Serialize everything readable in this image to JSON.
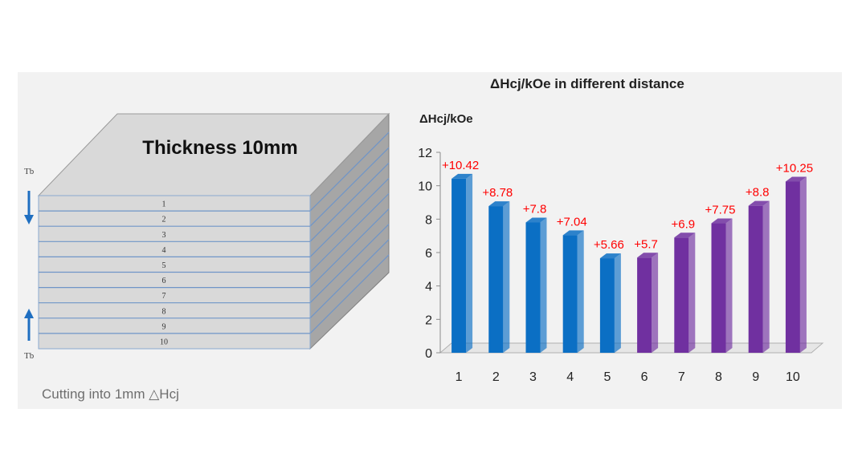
{
  "left_panel": {
    "block_label": "Thickness 10mm",
    "top_marker": "Tb",
    "bottom_marker": "Tb",
    "layers": [
      "1",
      "2",
      "3",
      "4",
      "5",
      "6",
      "7",
      "8",
      "9",
      "10"
    ],
    "caption": "Cutting into 1mm △Hcj",
    "arrow_down_icon": "arrow-down-icon",
    "arrow_up_icon": "arrow-up-icon"
  },
  "chart_data": {
    "type": "bar",
    "title": "ΔHcj/kOe in different distance",
    "ylabel": "ΔHcj/kOe",
    "xlabel": "",
    "categories": [
      "1",
      "2",
      "3",
      "4",
      "5",
      "6",
      "7",
      "8",
      "9",
      "10"
    ],
    "values": [
      10.42,
      8.78,
      7.8,
      7.04,
      5.66,
      5.7,
      6.9,
      7.75,
      8.8,
      10.25
    ],
    "data_labels": [
      "+10.42",
      "+8.78",
      "+7.8",
      "+7.04",
      "+5.66",
      "+5.7",
      "+6.9",
      "+7.75",
      "+8.8",
      "+10.25"
    ],
    "y_ticks": [
      "0",
      "2",
      "4",
      "6",
      "8",
      "10",
      "12"
    ],
    "ylim": [
      0,
      12
    ],
    "grid": false,
    "legend": "none",
    "colors": {
      "bars_1_to_5": "#0b6fc4",
      "bars_6_to_10": "#7030a0",
      "data_labels": "#ff0000"
    }
  }
}
